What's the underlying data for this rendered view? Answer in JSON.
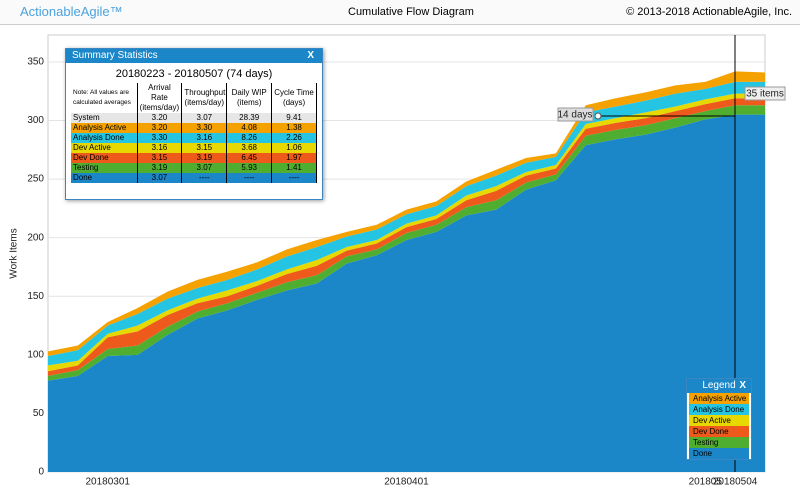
{
  "header": {
    "logo": "ActionableAgile™",
    "title": "Cumulative Flow Diagram",
    "copyright": "© 2013-2018 ActionableAgile, Inc."
  },
  "chart_data": {
    "type": "stacked_area",
    "y_label": "Work Items",
    "categories": [
      null,
      null,
      "20180301",
      null,
      null,
      null,
      null,
      null,
      null,
      null,
      null,
      null,
      "20180401",
      null,
      null,
      null,
      null,
      null,
      null,
      null,
      null,
      null,
      "201805",
      "20180504",
      null
    ],
    "series": [
      {
        "name": "Done",
        "color": "#1b87c9",
        "values": [
          78,
          82,
          99,
          100,
          117,
          131,
          138,
          147,
          155,
          161,
          178,
          185,
          198,
          205,
          219,
          224,
          241,
          249,
          279,
          284,
          288,
          294,
          301,
          305,
          305
        ]
      },
      {
        "name": "Testing",
        "color": "#4fae30",
        "values": [
          4,
          5,
          6,
          8,
          7,
          6,
          6,
          6,
          7,
          7,
          6,
          5,
          6,
          6,
          7,
          8,
          6,
          5,
          8,
          8,
          8,
          8,
          7,
          8,
          8
        ]
      },
      {
        "name": "Dev Done",
        "color": "#ee5a1c",
        "values": [
          4,
          4,
          10,
          12,
          10,
          7,
          6,
          6,
          7,
          8,
          5,
          5,
          5,
          5,
          6,
          8,
          6,
          5,
          6,
          6,
          6,
          6,
          6,
          6,
          6
        ]
      },
      {
        "name": "Dev Active",
        "color": "#e6d800",
        "values": [
          5,
          4,
          3,
          5,
          4,
          4,
          5,
          4,
          4,
          5,
          3,
          3,
          3,
          3,
          4,
          4,
          3,
          3,
          4,
          4,
          5,
          4,
          4,
          4,
          4
        ]
      },
      {
        "name": "Analysis Done",
        "color": "#25c4e2",
        "values": [
          8,
          9,
          7,
          10,
          10,
          9,
          9,
          10,
          11,
          11,
          9,
          9,
          8,
          8,
          8,
          9,
          8,
          7,
          10,
          10,
          10,
          11,
          9,
          10,
          10
        ]
      },
      {
        "name": "Analysis Active",
        "color": "#f5a200",
        "values": [
          4,
          4,
          3,
          5,
          6,
          7,
          7,
          6,
          6,
          6,
          4,
          4,
          4,
          4,
          4,
          5,
          4,
          3,
          6,
          7,
          7,
          7,
          6,
          9,
          8
        ]
      }
    ],
    "ylim": [
      0,
      373
    ],
    "yticks": [
      0,
      50,
      100,
      150,
      200,
      250,
      300,
      350
    ],
    "grid": true,
    "annotations": [
      "14 days",
      "35 items"
    ],
    "legend": {
      "title": "Legend",
      "close": "X"
    }
  },
  "summary": {
    "title": "Summary Statistics",
    "close": "X",
    "range": "20180223 - 20180507 (74 days)",
    "note": "Note: All values are calculated averages",
    "headers": [
      "Arrival Rate (items/day)",
      "Throughput (items/day)",
      "Daily WIP (items)",
      "Cycle Time (days)"
    ],
    "rows": [
      {
        "color": "#e6e6e6",
        "cells": [
          "System",
          "3.20",
          "3.07",
          "28.39",
          "9.41"
        ]
      },
      {
        "color": "#f5a200",
        "cells": [
          "Analysis Active",
          "3.20",
          "3.30",
          "4.08",
          "1.38"
        ]
      },
      {
        "color": "#25c4e2",
        "cells": [
          "Analysis Done",
          "3.30",
          "3.16",
          "8.26",
          "2.26"
        ]
      },
      {
        "color": "#e6d800",
        "cells": [
          "Dev Active",
          "3.16",
          "3.15",
          "3.68",
          "1.06"
        ]
      },
      {
        "color": "#ee5a1c",
        "cells": [
          "Dev Done",
          "3.15",
          "3.19",
          "6.45",
          "1.97"
        ]
      },
      {
        "color": "#4fae30",
        "cells": [
          "Testing",
          "3.19",
          "3.07",
          "5.93",
          "1.41"
        ]
      },
      {
        "color": "#1b87c9",
        "cells": [
          "Done",
          "3.07",
          "----",
          "----",
          "----"
        ]
      }
    ]
  }
}
